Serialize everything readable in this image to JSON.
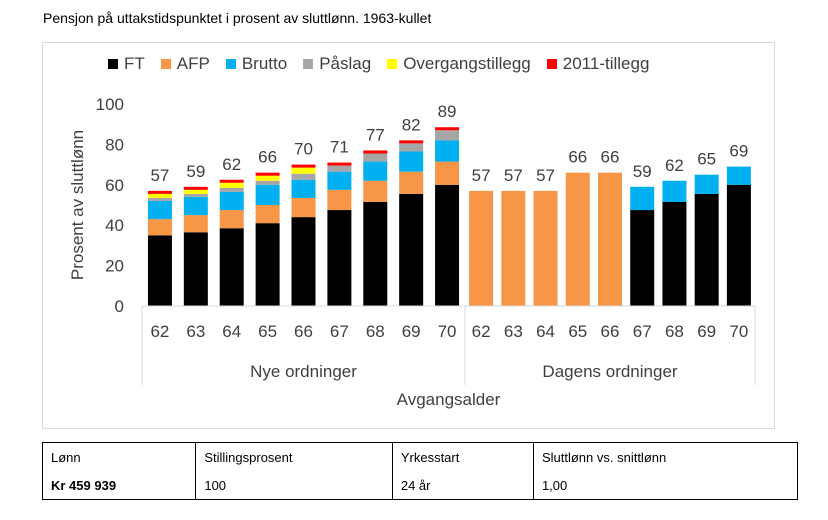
{
  "title": "Pensjon på uttakstidspunktet i prosent av sluttlønn. 1963-kullet",
  "chart_data": {
    "type": "bar",
    "stacked": true,
    "ylabel": "Prosent av sluttlønn",
    "xlabel": "Avgangsalder",
    "ylim": [
      0,
      100
    ],
    "yticks": [
      0,
      20,
      40,
      60,
      80,
      100
    ],
    "legend_position": "top",
    "series_names": [
      "FT",
      "AFP",
      "Brutto",
      "Påslag",
      "Overgangstillegg",
      "2011-tillegg"
    ],
    "colors": {
      "FT": "#000000",
      "AFP": "#f79646",
      "Brutto": "#00b0f0",
      "Påslag": "#a6a6a6",
      "Overgangstillegg": "#ffff00",
      "2011-tillegg": "#ff0000"
    },
    "groups": [
      {
        "name": "Nye ordninger",
        "categories": [
          "62",
          "63",
          "64",
          "65",
          "66",
          "67",
          "68",
          "69",
          "70"
        ],
        "totals": [
          "57",
          "59",
          "62",
          "66",
          "70",
          "71",
          "77",
          "82",
          "89"
        ],
        "series": [
          {
            "name": "FT",
            "values": [
              35,
              36.5,
              38.5,
              41,
              44,
              47.5,
              51.5,
              55.5,
              60
            ]
          },
          {
            "name": "AFP",
            "values": [
              8,
              8.5,
              9,
              9,
              9.5,
              10,
              10.5,
              11,
              11.5
            ]
          },
          {
            "name": "Brutto",
            "values": [
              9,
              9,
              9,
              10,
              9,
              9,
              9.5,
              10,
              10.5
            ]
          },
          {
            "name": "Påslag",
            "values": [
              1.5,
              1.5,
              2,
              2,
              3,
              3,
              4,
              4,
              5
            ]
          },
          {
            "name": "Overgangstillegg",
            "values": [
              2,
              2,
              2.5,
              2.5,
              3,
              0,
              0,
              0,
              0
            ]
          },
          {
            "name": "2011-tillegg",
            "values": [
              1.5,
              1.5,
              1.5,
              1.5,
              1.5,
              1.5,
              1.5,
              1.5,
              1.5
            ]
          }
        ]
      },
      {
        "name": "Dagens ordninger",
        "categories": [
          "62",
          "63",
          "64",
          "65",
          "66",
          "67",
          "68",
          "69",
          "70"
        ],
        "totals": [
          "57",
          "57",
          "57",
          "66",
          "66",
          "59",
          "62",
          "65",
          "69"
        ],
        "series": [
          {
            "name": "FT",
            "values": [
              0,
              0,
              0,
              0,
              0,
              47.5,
              51.5,
              55.5,
              60
            ]
          },
          {
            "name": "AFP",
            "values": [
              57,
              57,
              57,
              66,
              66,
              0,
              0,
              0,
              0
            ]
          },
          {
            "name": "Brutto",
            "values": [
              0,
              0,
              0,
              0,
              0,
              11.5,
              10.5,
              9.5,
              9
            ]
          },
          {
            "name": "Påslag",
            "values": [
              0,
              0,
              0,
              0,
              0,
              0,
              0,
              0,
              0
            ]
          },
          {
            "name": "Overgangstillegg",
            "values": [
              0,
              0,
              0,
              0,
              0,
              0,
              0,
              0,
              0
            ]
          },
          {
            "name": "2011-tillegg",
            "values": [
              0,
              0,
              0,
              0,
              0,
              0,
              0,
              0,
              0
            ]
          }
        ]
      }
    ]
  },
  "info_table": {
    "headers": [
      "Lønn",
      "Stillingsprosent",
      "Yrkesstart",
      "Sluttlønn vs. snittlønn"
    ],
    "values": [
      "Kr 459 939",
      "100",
      "24 år",
      "1,00"
    ]
  }
}
